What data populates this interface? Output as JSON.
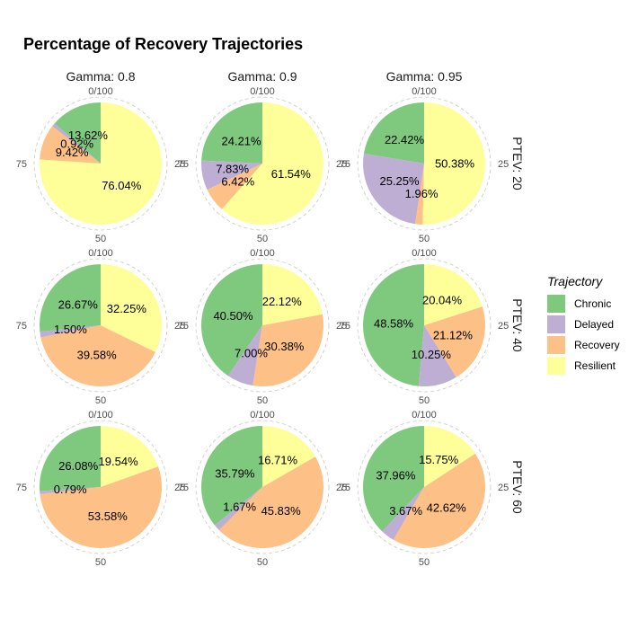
{
  "chart_data": {
    "type": "pie",
    "title": "Percentage of Recovery Trajectories",
    "column_strips": [
      "Gamma: 0.8",
      "Gamma: 0.9",
      "Gamma: 0.95"
    ],
    "row_strips": [
      "PTEV: 20",
      "PTEV: 40",
      "PTEV: 60"
    ],
    "tick_labels": [
      "0/100",
      "25",
      "50",
      "75"
    ],
    "legend": {
      "title": "Trajectory",
      "placement": "right",
      "entries": [
        {
          "name": "Chronic",
          "color": "#7FC97F"
        },
        {
          "name": "Delayed",
          "color": "#BEAED4"
        },
        {
          "name": "Recovery",
          "color": "#FDC086"
        },
        {
          "name": "Resilient",
          "color": "#FFFF99"
        }
      ]
    },
    "panels": [
      {
        "gamma": "Gamma: 0.8",
        "ptev": "PTEV: 20",
        "values": [
          13.62,
          0.92,
          9.42,
          76.04
        ],
        "labels": [
          "13.62%",
          "0.92%",
          "9.42%",
          "76.04%"
        ]
      },
      {
        "gamma": "Gamma: 0.9",
        "ptev": "PTEV: 20",
        "values": [
          24.21,
          7.83,
          6.42,
          61.54
        ],
        "labels": [
          "24.21%",
          "7.83%",
          "6.42%",
          "61.54%"
        ]
      },
      {
        "gamma": "Gamma: 0.95",
        "ptev": "PTEV: 20",
        "values": [
          22.42,
          25.25,
          1.96,
          50.38
        ],
        "labels": [
          "22.42%",
          "25.25%",
          "1.96%",
          "50.38%"
        ]
      },
      {
        "gamma": "Gamma: 0.8",
        "ptev": "PTEV: 40",
        "values": [
          26.67,
          1.5,
          39.58,
          32.25
        ],
        "labels": [
          "26.67%",
          "1.50%",
          "39.58%",
          "32.25%"
        ]
      },
      {
        "gamma": "Gamma: 0.9",
        "ptev": "PTEV: 40",
        "values": [
          40.5,
          7.0,
          30.38,
          22.12
        ],
        "labels": [
          "40.50%",
          "7.00%",
          "30.38%",
          "22.12%"
        ]
      },
      {
        "gamma": "Gamma: 0.95",
        "ptev": "PTEV: 40",
        "values": [
          48.58,
          10.25,
          21.12,
          20.04
        ],
        "labels": [
          "48.58%",
          "10.25%",
          "21.12%",
          "20.04%"
        ]
      },
      {
        "gamma": "Gamma: 0.8",
        "ptev": "PTEV: 60",
        "values": [
          26.08,
          0.79,
          53.58,
          19.54
        ],
        "labels": [
          "26.08%",
          "0.79%",
          "53.58%",
          "19.54%"
        ]
      },
      {
        "gamma": "Gamma: 0.9",
        "ptev": "PTEV: 60",
        "values": [
          35.79,
          1.67,
          45.83,
          16.71
        ],
        "labels": [
          "35.79%",
          "1.67%",
          "45.83%",
          "16.71%"
        ]
      },
      {
        "gamma": "Gamma: 0.95",
        "ptev": "PTEV: 60",
        "values": [
          37.96,
          3.67,
          42.62,
          15.75
        ],
        "labels": [
          "37.96%",
          "3.67%",
          "42.62%",
          "15.75%"
        ]
      }
    ]
  }
}
